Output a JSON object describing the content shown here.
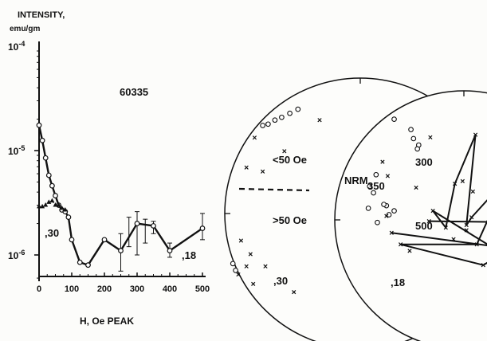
{
  "chart_data": [
    {
      "type": "line",
      "ylabel": "INTENSITY,",
      "yunit": "emu/gm",
      "xlabel": "H, Oe PEAK",
      "sample_label": "60335",
      "yscale": "log",
      "ylim": [
        6e-07,
        0.0001
      ],
      "y_tick_labels": [
        "10-4",
        "10-5",
        "10-6"
      ],
      "xlim": [
        0,
        500
      ],
      "x_ticks": [
        0,
        100,
        200,
        300,
        400,
        500
      ],
      "series": [
        {
          "name": ",18",
          "marker": "circle",
          "x": [
            0,
            10,
            20,
            30,
            40,
            50,
            60,
            70,
            80,
            90,
            100,
            125,
            150,
            200,
            250,
            300,
            350,
            400,
            500
          ],
          "y": [
            1.75e-05,
            1.25e-05,
            8.5e-06,
            5.8e-06,
            4.6e-06,
            3.7e-06,
            3e-06,
            2.7e-06,
            2.6e-06,
            2.3e-06,
            1.4e-06,
            8.5e-07,
            8e-07,
            1.4e-06,
            1.1e-06,
            2e-06,
            1.9e-06,
            1.1e-06,
            1.8e-06
          ],
          "error_bars": [
            {
              "x": 250,
              "low": 7e-07,
              "high": 1.6e-06
            },
            {
              "x": 275,
              "low": 1.2e-06,
              "high": 2.3e-06
            },
            {
              "x": 300,
              "low": 1e-06,
              "high": 2.6e-06
            },
            {
              "x": 325,
              "low": 1.3e-06,
              "high": 2.2e-06
            },
            {
              "x": 350,
              "low": 1.6e-06,
              "high": 2.1e-06
            },
            {
              "x": 400,
              "low": 9.5e-07,
              "high": 1.3e-06
            },
            {
              "x": 500,
              "low": 1.4e-06,
              "high": 2.5e-06
            }
          ]
        },
        {
          "name": ",30",
          "marker": "triangle",
          "x": [
            0,
            10,
            20,
            30,
            40,
            50,
            60,
            70,
            80
          ],
          "y": [
            2.9e-06,
            2.9e-06,
            3e-06,
            3.2e-06,
            3.3e-06,
            3e-06,
            3e-06,
            2.8e-06,
            2.7e-06
          ]
        }
      ]
    },
    {
      "type": "scatter",
      "chart": "stereonet-left",
      "labels": [
        "<50 Oe",
        ">50 Oe",
        ",30"
      ],
      "series": [
        {
          "marker": "circle",
          "x": [
            -0.72,
            -0.68,
            -0.63,
            -0.58,
            -0.52,
            -0.46,
            -0.94,
            -0.92
          ],
          "y": [
            0.65,
            0.66,
            0.69,
            0.71,
            0.74,
            0.77,
            -0.37,
            -0.42
          ]
        },
        {
          "marker": "x",
          "x": [
            -0.3,
            -0.78,
            -0.56,
            -0.84,
            -0.72,
            -0.88,
            -0.81,
            -0.84,
            -0.7,
            -0.9,
            -0.79,
            -0.49
          ],
          "y": [
            0.69,
            0.56,
            0.46,
            0.34,
            0.31,
            -0.2,
            -0.3,
            -0.39,
            -0.39,
            -0.45,
            -0.52,
            -0.58
          ]
        }
      ]
    },
    {
      "type": "scatter",
      "chart": "stereonet-right",
      "labels": [
        "NRM",
        "350",
        "300",
        "500",
        ",18"
      ],
      "series": [
        {
          "marker": "circle",
          "x": [
            -0.54,
            -0.41,
            -0.39,
            -0.35,
            -0.36,
            -0.68,
            -0.73,
            -0.7,
            -0.6,
            -0.54,
            -0.58,
            -0.67,
            -0.74,
            -0.62
          ],
          "y": [
            0.78,
            0.7,
            0.63,
            0.58,
            0.55,
            0.35,
            0.26,
            0.21,
            0.11,
            0.07,
            0.04,
            -0.02,
            0.09,
            0.12
          ]
        },
        {
          "marker": "x",
          "x": [
            -0.26,
            -0.63,
            -0.59,
            0.09,
            -0.37,
            -0.6,
            -0.24,
            -0.07,
            -0.01,
            -0.14,
            0.07,
            0.02,
            0.06,
            -0.08,
            0.43,
            -0.56,
            0.2,
            0.51,
            0.58,
            -0.49,
            -0.42,
            -0.27,
            0.32,
            0.4,
            0.36,
            0.02,
            0.1,
            0.15
          ],
          "y": [
            0.64,
            0.45,
            0.34,
            0.66,
            0.25,
            0.03,
            0.07,
            0.28,
            0.3,
            -0.06,
            0.22,
            -0.04,
            0.02,
            -0.15,
            -0.35,
            -0.1,
            -0.2,
            -0.02,
            -0.1,
            -0.19,
            -0.24,
            -0.01,
            0.3,
            0.28,
            0.35,
            -0.08,
            -0.19,
            -0.35
          ]
        }
      ],
      "crosshair": {
        "x": 0.68,
        "y": -0.24
      }
    }
  ]
}
